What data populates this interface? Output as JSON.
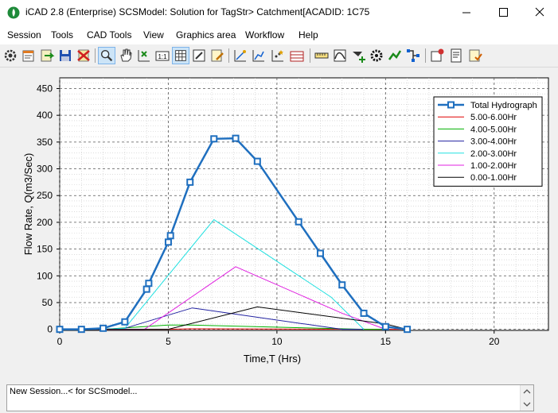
{
  "window": {
    "title": "iCAD 2.8  (Enterprise) SCSModel: Solution for TagStr> Catchment[ACADID: 1C75",
    "icon": "app-logo-icon",
    "controls": [
      "minimize-icon",
      "maximize-icon",
      "close-icon"
    ]
  },
  "menu": {
    "items": [
      "Session",
      "Tools",
      "CAD Tools",
      "View",
      "Graphics area",
      "Workflow",
      "Help"
    ]
  },
  "toolbar": {
    "buttons": [
      "gear-icon",
      "properties-icon",
      "import-icon",
      "save-icon",
      "delete-icon",
      "zoom-icon",
      "pan-icon",
      "pick-point-icon",
      "scale-1-1-icon",
      "grid-icon",
      "edit-window-icon",
      "notes-icon",
      "draw-line-icon",
      "edit-points-icon",
      "magic-points-icon",
      "measure-icon",
      "range-icon",
      "curve-icon",
      "add-node-icon",
      "settings-wheel-icon",
      "trend-icon",
      "network-icon",
      "tools-icon",
      "report-icon",
      "review-icon"
    ],
    "active": [
      "zoom-icon",
      "grid-icon"
    ]
  },
  "chart_data": {
    "type": "line",
    "xlabel": "Time,T (Hrs)",
    "ylabel": "Flow Rate, Q(m3/Sec)",
    "xlim": [
      0,
      22.5
    ],
    "ylim": [
      -2,
      470
    ],
    "xticks": [
      0,
      5,
      10,
      15,
      20
    ],
    "yticks": [
      0,
      50,
      100,
      150,
      200,
      250,
      300,
      350,
      400,
      450
    ],
    "grid": true,
    "legend_position": "top-right",
    "series": [
      {
        "name": "Total Hydrograph",
        "color": "#1f6fbf",
        "marker": "square",
        "width": 2.5,
        "x": [
          0,
          1,
          2,
          3,
          4,
          4.1,
          5,
          5.1,
          6,
          7.1,
          8.1,
          9.1,
          11,
          12,
          13,
          14,
          15,
          16
        ],
        "y": [
          0,
          0,
          2,
          14,
          75,
          86,
          163,
          175,
          275,
          356,
          357,
          314,
          201,
          142,
          83,
          30,
          5,
          0
        ]
      },
      {
        "name": "5.00-6.00Hr",
        "color": "#e00000",
        "width": 1,
        "x": [
          0,
          2,
          5,
          6,
          15,
          16
        ],
        "y": [
          0,
          0,
          0,
          1,
          0,
          0
        ]
      },
      {
        "name": "4.00-5.00Hr",
        "color": "#00b000",
        "width": 1,
        "x": [
          0,
          2,
          5,
          6,
          14,
          15
        ],
        "y": [
          0,
          0,
          8,
          8,
          0,
          0
        ]
      },
      {
        "name": "3.00-4.00Hr",
        "color": "#2020a0",
        "width": 1,
        "x": [
          0,
          2,
          3,
          6.1,
          13,
          14
        ],
        "y": [
          0,
          0,
          2,
          40,
          0,
          0
        ]
      },
      {
        "name": "2.00-3.00Hr",
        "color": "#20e0e0",
        "width": 1,
        "x": [
          0,
          2,
          3,
          7.1,
          12.5,
          14
        ],
        "y": [
          0,
          0,
          2,
          205,
          60,
          0
        ]
      },
      {
        "name": "1.00-2.00Hr",
        "color": "#e020e0",
        "width": 1,
        "x": [
          0,
          3.9,
          8.1,
          13,
          15
        ],
        "y": [
          0,
          0,
          117,
          30,
          0
        ]
      },
      {
        "name": "0.00-1.00Hr",
        "color": "#000000",
        "width": 1,
        "x": [
          0,
          5,
          9.1,
          15,
          16
        ],
        "y": [
          0,
          0,
          42,
          10,
          0
        ]
      }
    ]
  },
  "status": {
    "text": "New Session...< for SCSmodel..."
  }
}
